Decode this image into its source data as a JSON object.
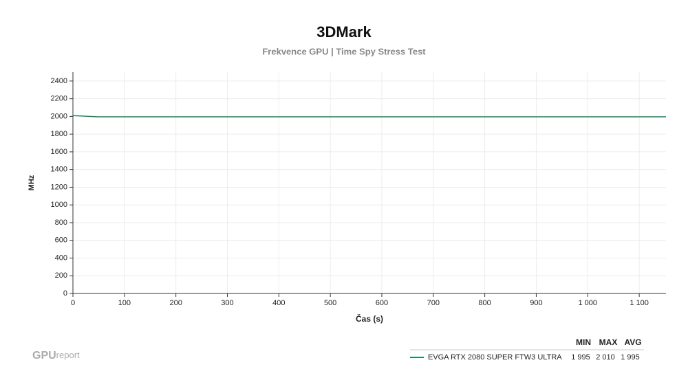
{
  "chart_data": {
    "type": "line",
    "title": "3DMark",
    "subtitle": "Frekvence GPU | Time Spy Stress Test",
    "x_label": "Čas (s)",
    "y_label": "MHz",
    "x": [
      0,
      50,
      100,
      150,
      200,
      250,
      300,
      350,
      400,
      450,
      500,
      550,
      600,
      650,
      700,
      750,
      800,
      850,
      900,
      950,
      1000,
      1050,
      1100,
      1150,
      1152
    ],
    "series": [
      {
        "name": "EVGA RTX 2080 SUPER FTW3 ULTRA",
        "color": "#1a8a5a",
        "values": [
          2010,
          1995,
          1995,
          1995,
          1995,
          1995,
          1995,
          1995,
          1995,
          1995,
          1995,
          1995,
          1995,
          1995,
          1995,
          1995,
          1995,
          1995,
          1995,
          1995,
          1995,
          1995,
          1995,
          1995,
          1995
        ]
      }
    ],
    "xlim": [
      0,
      1152
    ],
    "ylim": [
      0,
      2500
    ],
    "xticks": [
      0,
      100,
      200,
      300,
      400,
      500,
      600,
      700,
      800,
      900,
      {
        "value": 1000,
        "label": "1 000"
      },
      {
        "value": 1100,
        "label": "1 100"
      }
    ],
    "yticks": [
      0,
      200,
      400,
      600,
      800,
      1000,
      1200,
      1400,
      1600,
      1800,
      2000,
      2200,
      2400
    ],
    "grid": true,
    "stats": {
      "columns": [
        "MIN",
        "MAX",
        "AVG"
      ],
      "rows": [
        [
          "1 995",
          "2 010",
          "1 995"
        ]
      ]
    }
  },
  "logo": {
    "bold": "GPU",
    "light": "report"
  }
}
